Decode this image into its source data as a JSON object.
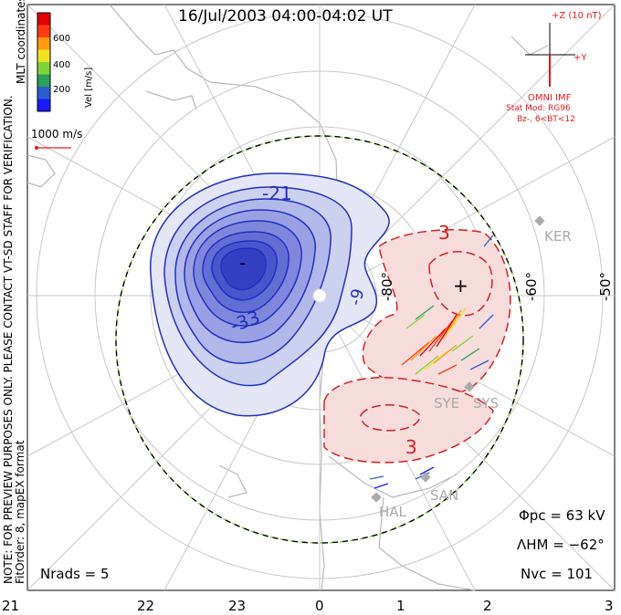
{
  "title": "16/Jul/2003 04:00-04:02 UT",
  "coords_label": "MLT coordinates",
  "note_line1": "NOTE: FOR PREVIEW PURPOSES ONLY. PLEASE CONTACT VT-SD STAFF FOR VERIFICATION.",
  "note_line2": "FitOrder: 8, mapEX format",
  "colorbar": {
    "label": "Vel [m/s]",
    "ticks": [
      "600",
      "400",
      "200"
    ],
    "colors": [
      "#1a1aff",
      "#2b5fcf",
      "#2aa05a",
      "#7fd43a",
      "#f0e020",
      "#ff9a10",
      "#ff3a10",
      "#e00000"
    ]
  },
  "vector_scale": "1000 m/s",
  "imf": {
    "bz_label": "+Z (10 nT)",
    "by_label": "+Y",
    "source": "OMNI IMF",
    "model_line1": "Stat Mod: RG96",
    "model_line2": "Bz-, 6<BT<12"
  },
  "contours": {
    "neg_labels": [
      "-21",
      "-33",
      "-9",
      "-"
    ],
    "pos_labels": [
      "3",
      "3",
      "+"
    ],
    "neg_color": "#2030c0",
    "pos_color": "#d62020"
  },
  "lat_labels": [
    "-80°",
    "-60°",
    "-50°"
  ],
  "stations": [
    "KER",
    "SYE",
    "SYS",
    "HAL",
    "SAN"
  ],
  "params": {
    "phi_pc": "Φpc = 63 kV",
    "lambda_hm": "ΛHM = −62°",
    "n_vc": "Nvc = 101",
    "n_rads": "Nrads = 5"
  },
  "x_ticks": [
    "21",
    "22",
    "23",
    "0",
    "1",
    "2",
    "3"
  ]
}
